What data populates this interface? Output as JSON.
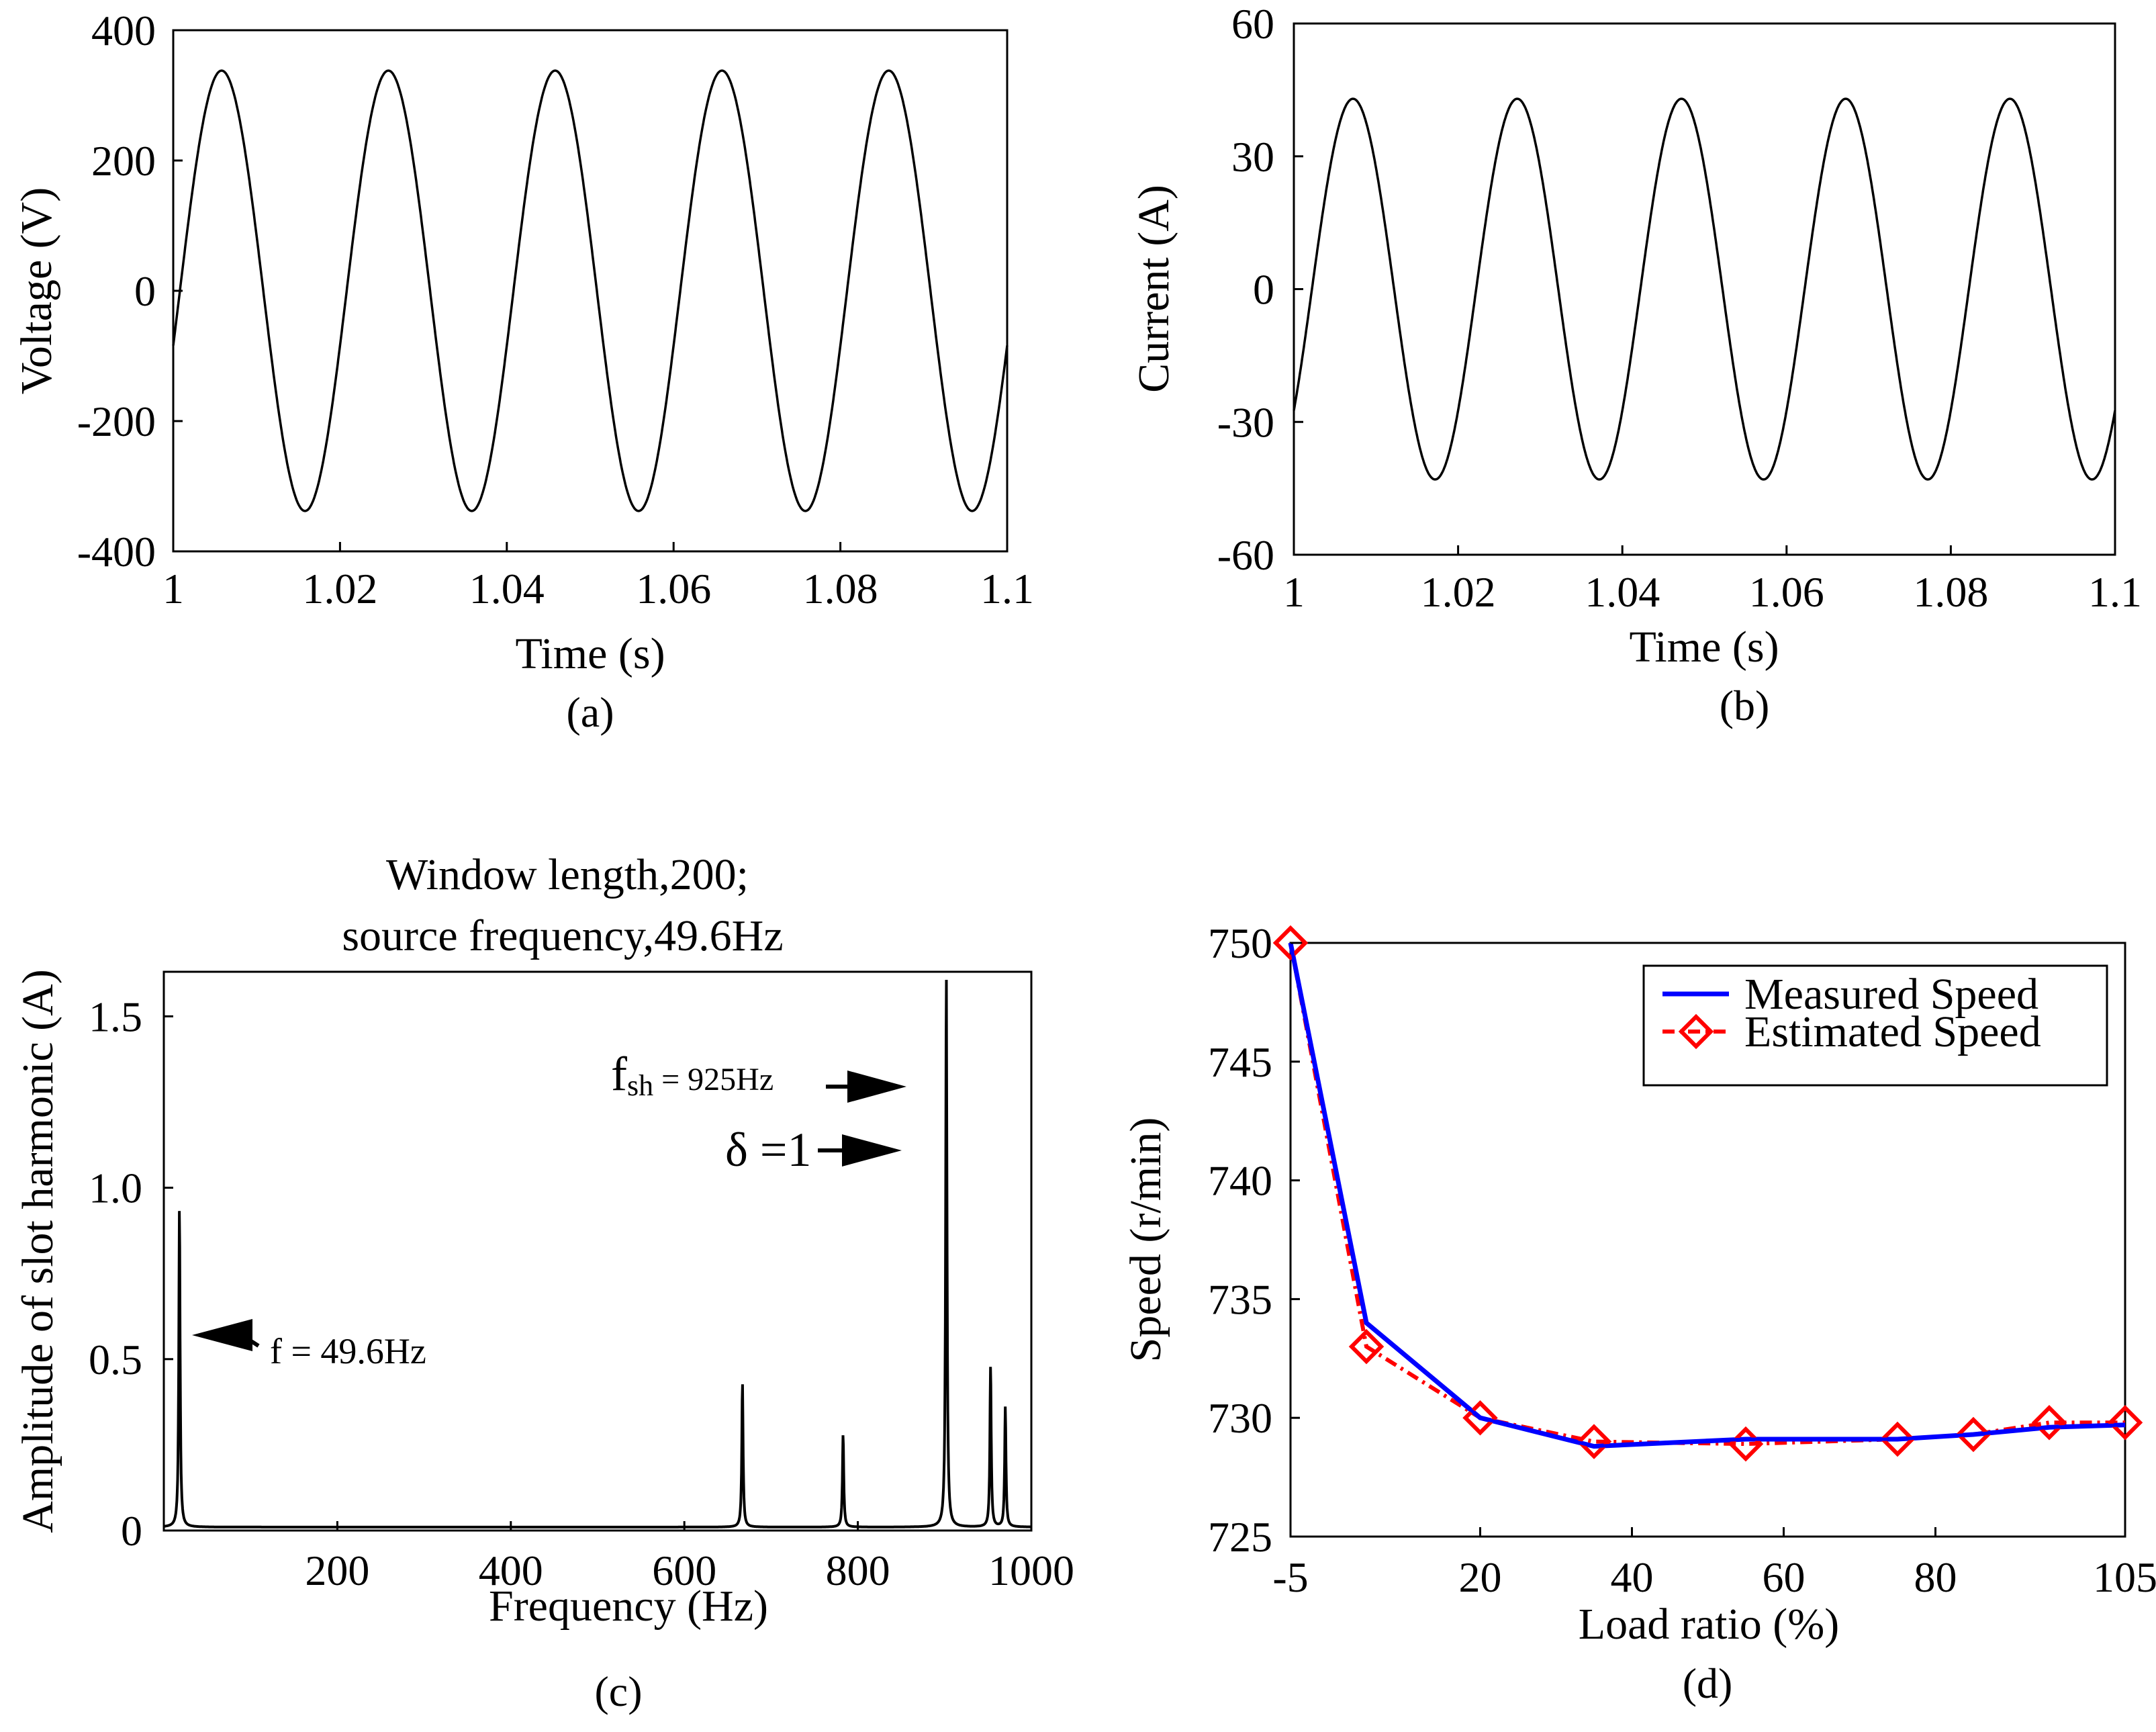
{
  "chart_data": [
    {
      "type": "line",
      "caption": "(a)",
      "xlabel": "Time (s)",
      "ylabel": "Voltage (V)",
      "xlim": [
        1,
        1.1
      ],
      "ylim": [
        -400,
        400
      ],
      "xticks": [
        "1",
        "1.02",
        "1.04",
        "1.06",
        "1.08",
        "1.1"
      ],
      "yticks": [
        "400",
        "200",
        "0",
        "-200",
        "-400"
      ],
      "waveform": {
        "amplitude": 338,
        "frequency_hz": 50,
        "first_peak_s": 1.0058,
        "color": "#000000"
      },
      "grid": false
    },
    {
      "type": "line",
      "caption": "(b)",
      "xlabel": "Time (s)",
      "ylabel": "Current (A)",
      "xlim": [
        1,
        1.1
      ],
      "ylim": [
        -60,
        60
      ],
      "xticks": [
        "1",
        "1.02",
        "1.04",
        "1.06",
        "1.08",
        "1.1"
      ],
      "yticks": [
        "60",
        "30",
        "0",
        "-30",
        "-60"
      ],
      "waveform": {
        "amplitude": 43,
        "frequency_hz": 50,
        "first_peak_s": 1.0072,
        "color": "#000000"
      },
      "grid": false
    },
    {
      "type": "line",
      "caption": "(c)",
      "title_line1": "Window length,200;",
      "title_line2": "source frequency,49.6Hz",
      "xlabel": "Frequency (Hz)",
      "ylabel": "Amplitude of slot harmonic (A)",
      "xlim": [
        0,
        1000
      ],
      "ylim": [
        0,
        1.63
      ],
      "xticks": [
        "200",
        "400",
        "600",
        "800",
        "1000"
      ],
      "yticks": [
        "1.5",
        "1.0",
        "0.5",
        "0"
      ],
      "baseline": 0.01,
      "peaks": [
        {
          "x": 18,
          "y": 0.93
        },
        {
          "x": 667,
          "y": 0.42
        },
        {
          "x": 783,
          "y": 0.27
        },
        {
          "x": 902,
          "y": 1.61
        },
        {
          "x": 953,
          "y": 0.47
        },
        {
          "x": 970,
          "y": 0.35
        }
      ],
      "annotations": {
        "fsh": "f",
        "fsh_sub": "sh",
        "fsh_value": " = 925Hz",
        "delta": "δ =1",
        "f": "f = 49.6Hz"
      },
      "grid": false
    },
    {
      "type": "line",
      "caption": "(d)",
      "xlabel": "Load ratio (%)",
      "ylabel": "Speed (r/min)",
      "xlim": [
        -5,
        105
      ],
      "ylim": [
        725,
        750
      ],
      "xticks": [
        "-5",
        "20",
        "40",
        "60",
        "80",
        "105"
      ],
      "yticks": [
        "750",
        "745",
        "740",
        "735",
        "730",
        "725"
      ],
      "legend_position": "top-right",
      "series": [
        {
          "name": "Measured Speed",
          "color": "#0000ff",
          "style": "solid",
          "x": [
            -5,
            5,
            20,
            35,
            55,
            75,
            85,
            95,
            105
          ],
          "y": [
            750,
            734,
            730,
            728.8,
            729.1,
            729.1,
            729.3,
            729.6,
            729.7
          ]
        },
        {
          "name": "Estimated Speed",
          "color": "#ff0000",
          "style": "dash-dot",
          "marker": "diamond",
          "x": [
            -5,
            5,
            20,
            35,
            55,
            75,
            85,
            95,
            105
          ],
          "y": [
            750,
            733,
            730,
            729,
            728.9,
            729.1,
            729.3,
            729.8,
            729.8
          ]
        }
      ],
      "grid": false
    }
  ]
}
